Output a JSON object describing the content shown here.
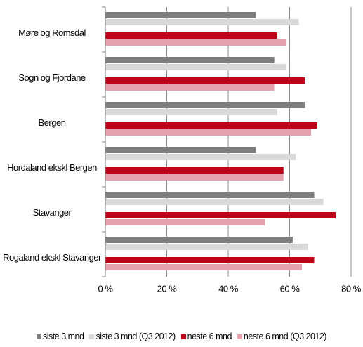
{
  "chart_data": {
    "type": "hbar",
    "categories": [
      "Møre og Romsdal",
      "Sogn og Fjordane",
      "Bergen",
      "Hordaland ekskl Bergen",
      "Stavanger",
      "Rogaland ekskl Stavanger"
    ],
    "series": [
      {
        "name": "siste 3 mnd",
        "color": "#7f7f7f",
        "values": [
          49,
          55,
          65,
          49,
          68,
          61
        ]
      },
      {
        "name": "siste 3 mnd (Q3 2012)",
        "color": "#d9d9d9",
        "values": [
          63,
          59,
          56,
          62,
          71,
          66
        ]
      },
      {
        "name": "neste 6 mnd",
        "color": "#c00018",
        "values": [
          56,
          65,
          69,
          58,
          75,
          68
        ]
      },
      {
        "name": "neste 6 mnd (Q3 2012)",
        "color": "#e6a3ad",
        "values": [
          59,
          55,
          67,
          58,
          52,
          64
        ]
      }
    ],
    "xlim": [
      0,
      80
    ],
    "xticks": [
      {
        "value": 0,
        "label": "0 %"
      },
      {
        "value": 20,
        "label": "20 %"
      },
      {
        "value": 40,
        "label": "40 %"
      },
      {
        "value": 60,
        "label": "60 %"
      },
      {
        "value": 80,
        "label": "80 %"
      }
    ],
    "grid": true
  }
}
